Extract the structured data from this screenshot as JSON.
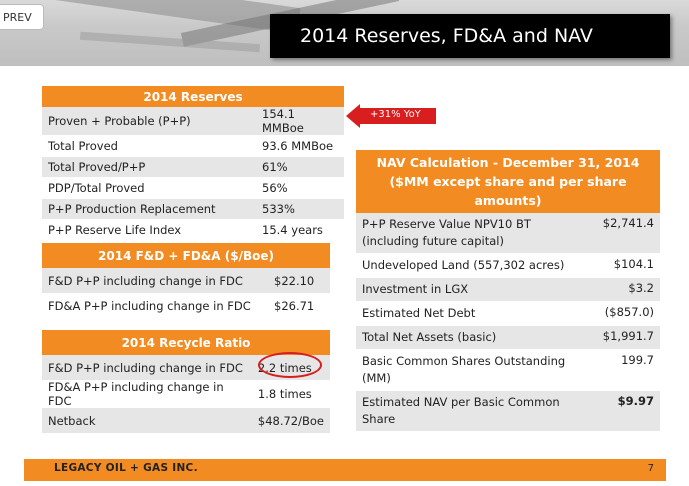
{
  "nav": {
    "prev_label": "PREV"
  },
  "slide": {
    "title": "2014 Reserves, FD&A and NAV",
    "page_number": "7",
    "company": "LEGACY OIL + GAS INC."
  },
  "reserves": {
    "header": "2014 Reserves",
    "rows": [
      {
        "label": "Proven + Probable (P+P)",
        "value": "154.1 MMBoe"
      },
      {
        "label": "Total Proved",
        "value": "93.6 MMBoe"
      },
      {
        "label": "Total Proved/P+P",
        "value": "61%"
      },
      {
        "label": "PDP/Total Proved",
        "value": "56%"
      },
      {
        "label": "P+P Production Replacement",
        "value": "533%"
      },
      {
        "label": "P+P Reserve Life Index",
        "value": "15.4 years"
      }
    ],
    "callout": "+31% YoY"
  },
  "fda": {
    "header": "2014 F&D + FD&A ($/Boe)",
    "rows": [
      {
        "label": "F&D P+P including change in FDC",
        "value": "$22.10"
      },
      {
        "label": "FD&A P+P including change in FDC",
        "value": "$26.71"
      }
    ]
  },
  "recycle": {
    "header": "2014 Recycle Ratio",
    "rows": [
      {
        "label": "F&D P+P including change in FDC",
        "value": "2.2 times"
      },
      {
        "label": "FD&A P+P including change in FDC",
        "value": "1.8 times"
      },
      {
        "label": "Netback",
        "value": "$48.72/Boe"
      }
    ]
  },
  "nav_calc": {
    "header_line1": "NAV Calculation  - December 31, 2014",
    "header_line2": "($MM except share and per share amounts)",
    "rows": [
      {
        "label": "P+P Reserve Value NPV10 BT (including future capital)",
        "value": "$2,741.4"
      },
      {
        "label": "Undeveloped Land (557,302 acres)",
        "value": "$104.1"
      },
      {
        "label": "Investment in LGX",
        "value": "$3.2"
      },
      {
        "label": "Estimated Net Debt",
        "value": "($857.0)"
      },
      {
        "label": "Total Net Assets (basic)",
        "value": "$1,991.7"
      },
      {
        "label": "Basic Common Shares Outstanding (MM)",
        "value": "199.7"
      },
      {
        "label": "Estimated NAV per Basic Common Share",
        "value": "$9.97"
      }
    ]
  },
  "colors": {
    "accent": "#f28c22",
    "callout": "#d81e1e",
    "title_bg": "#000000"
  }
}
